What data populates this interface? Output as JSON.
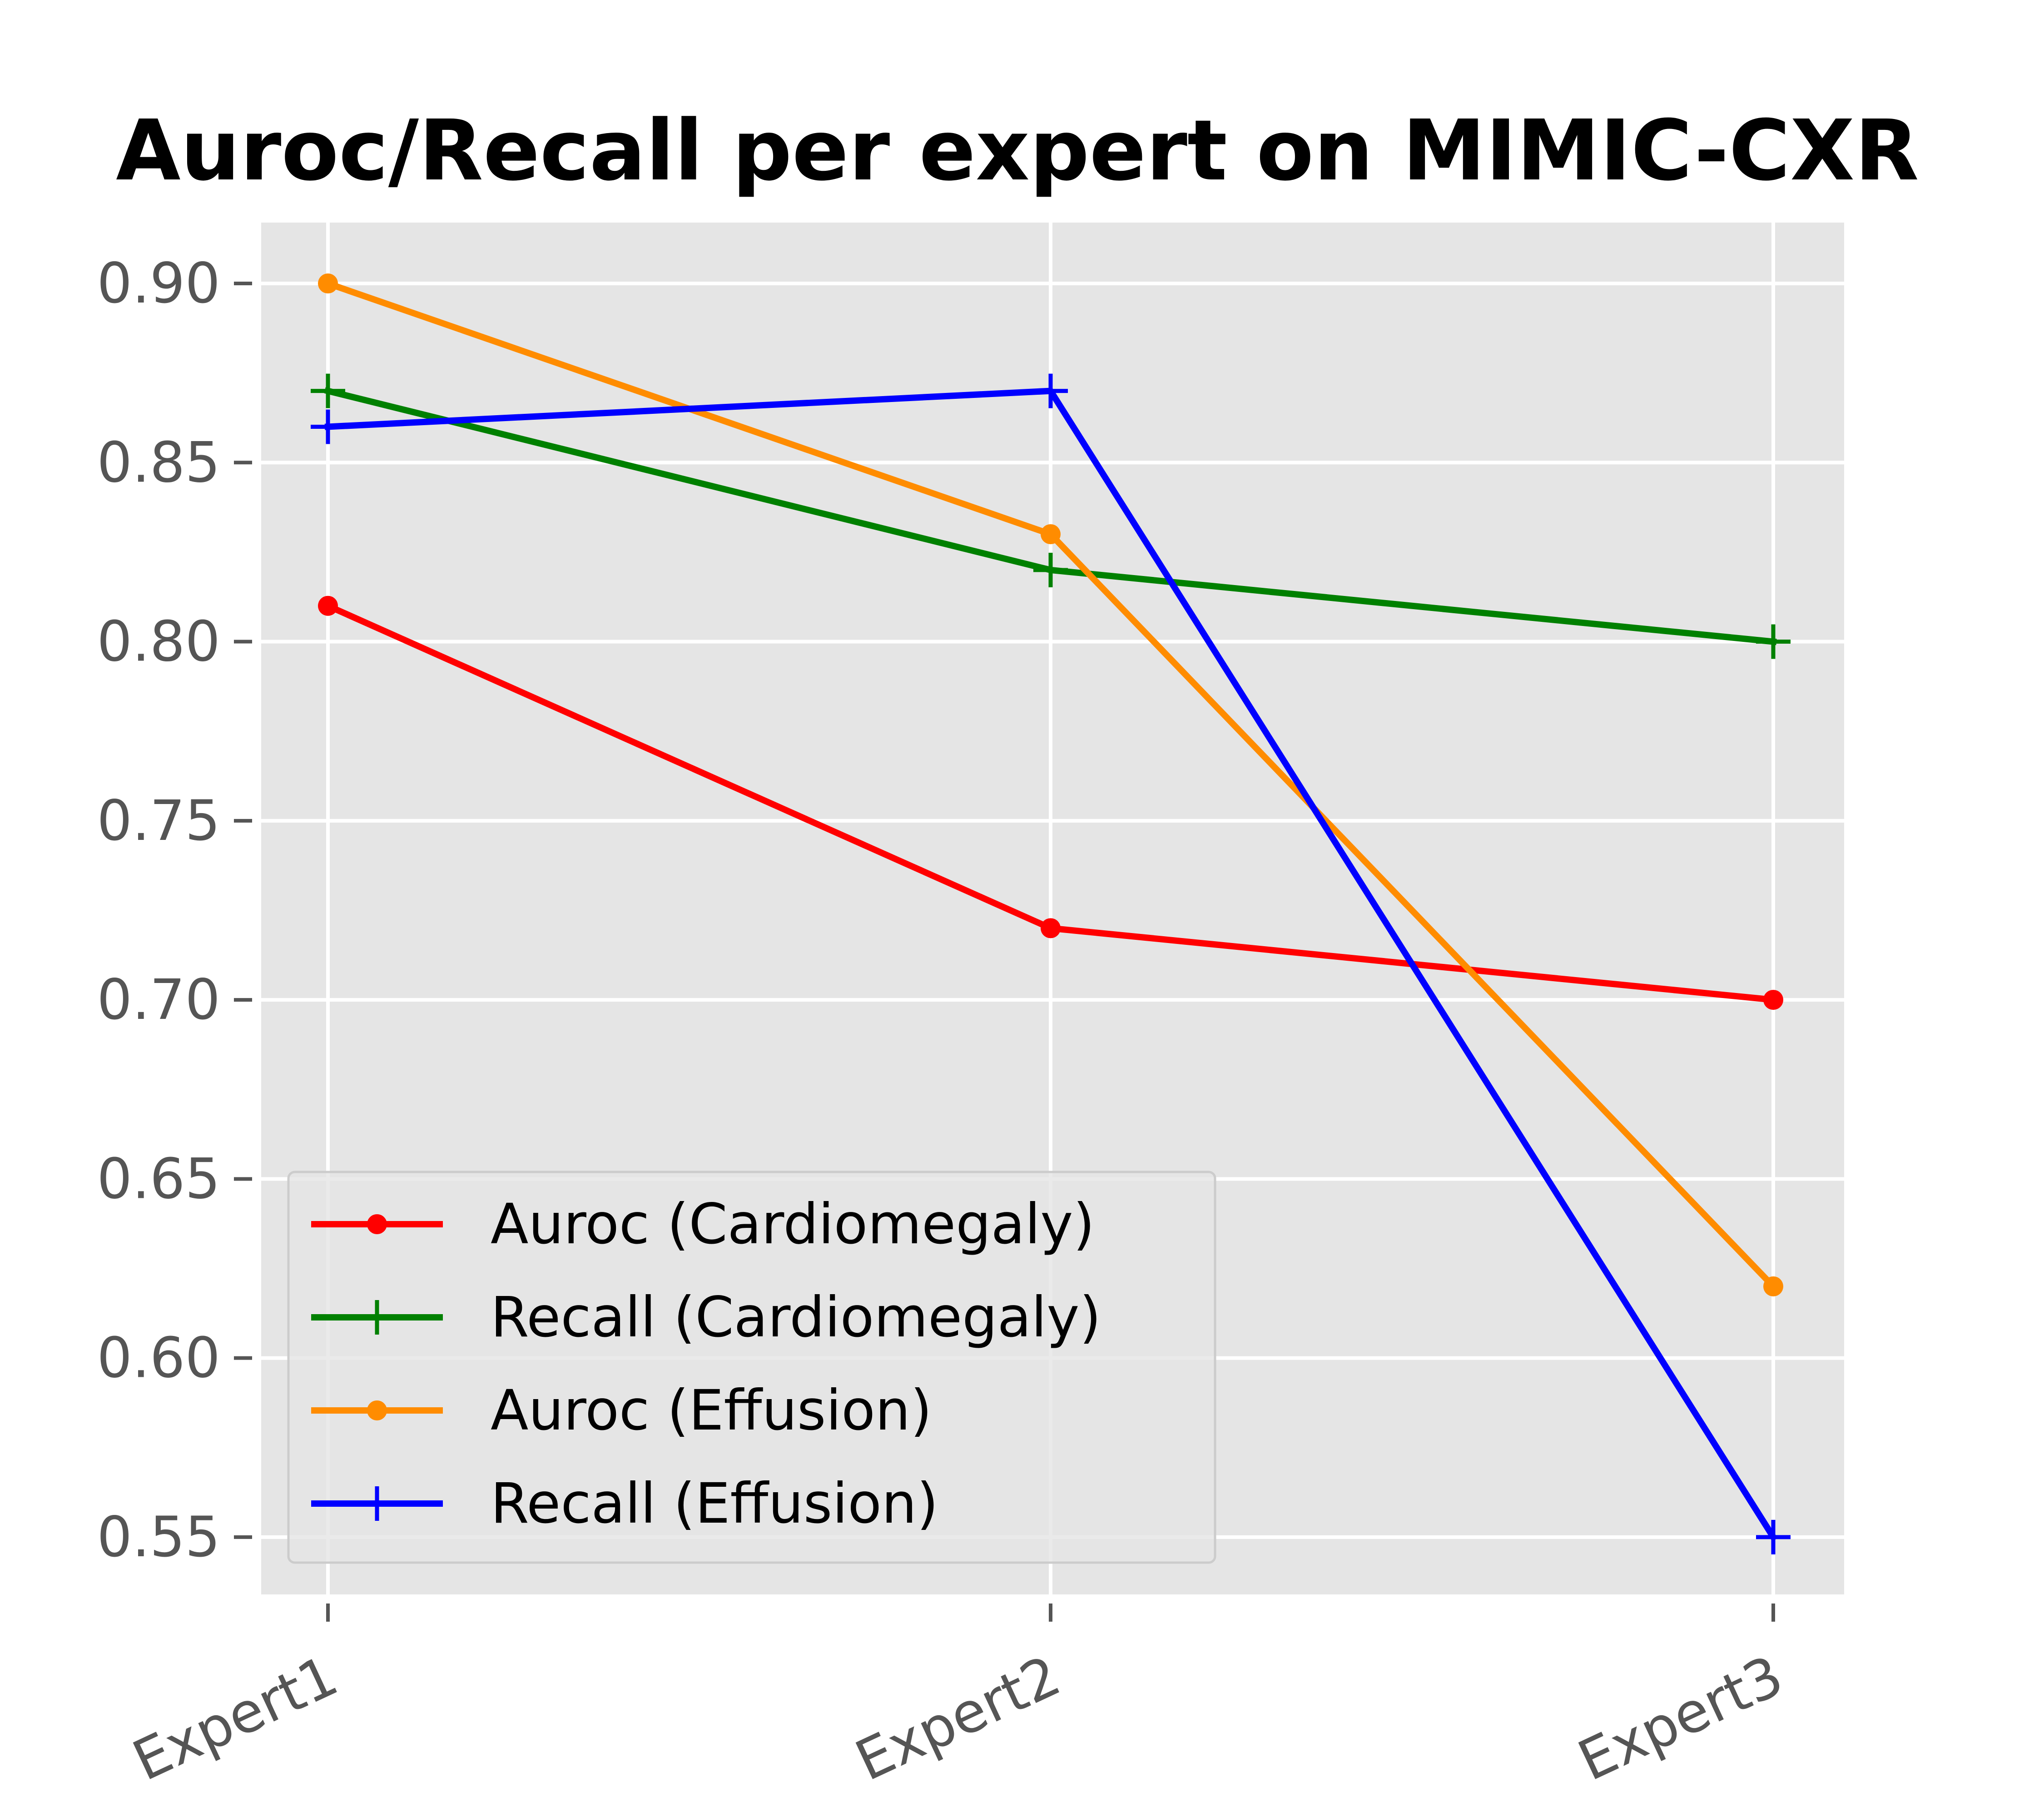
{
  "chart_data": {
    "type": "line",
    "title": "Auroc/Recall per expert on MIMIC-CXR",
    "xlabel": "",
    "ylabel": "",
    "categories": [
      "Expert1",
      "Expert2",
      "Expert3"
    ],
    "ylim": [
      0.534,
      0.917
    ],
    "yticks": [
      "0.90",
      "0.85",
      "0.80",
      "0.75",
      "0.70",
      "0.65",
      "0.60",
      "0.55"
    ],
    "grid": true,
    "legend_position": "lower-left",
    "series": [
      {
        "name": "Auroc (Cardiomegaly)",
        "values": [
          0.81,
          0.72,
          0.7
        ],
        "color": "#ff0000",
        "marker": "circle"
      },
      {
        "name": "Recall (Cardiomegaly)",
        "values": [
          0.87,
          0.82,
          0.8
        ],
        "color": "#008000",
        "marker": "plus"
      },
      {
        "name": "Auroc (Effusion)",
        "values": [
          0.9,
          0.83,
          0.62
        ],
        "color": "#ff8c00",
        "marker": "circle"
      },
      {
        "name": "Recall (Effusion)",
        "values": [
          0.86,
          0.87,
          0.55
        ],
        "color": "#0000ff",
        "marker": "plus"
      }
    ]
  }
}
